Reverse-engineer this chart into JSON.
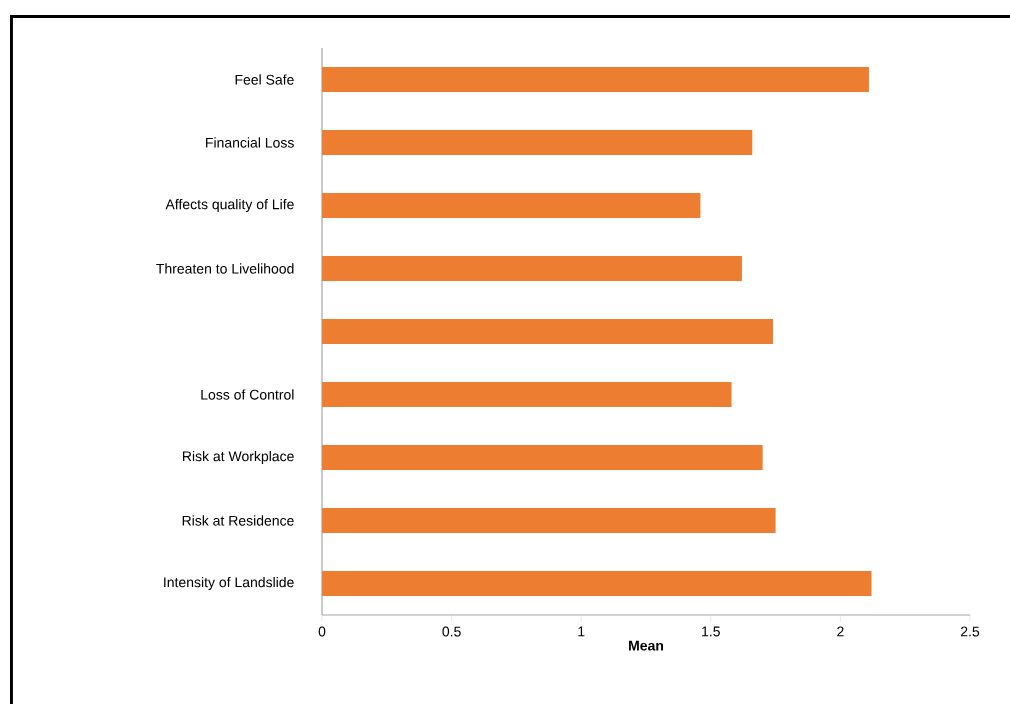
{
  "chart_data": {
    "type": "bar",
    "orientation": "horizontal",
    "xlabel": "Mean",
    "categories": [
      "Feel Safe",
      "Financial Loss",
      "Affects quality of Life",
      "Threaten to Livelihood",
      null,
      "Loss of Control",
      "Risk at Workplace",
      "Risk at Residence",
      "Intensity of Landslide"
    ],
    "values": [
      2.11,
      1.66,
      1.46,
      1.62,
      1.74,
      1.58,
      1.7,
      1.75,
      2.12
    ],
    "color": "#ed7d31",
    "xlim": [
      0,
      2.5
    ],
    "xticks": [
      0,
      0.5,
      1,
      1.5,
      2,
      2.5
    ],
    "grid": false
  }
}
